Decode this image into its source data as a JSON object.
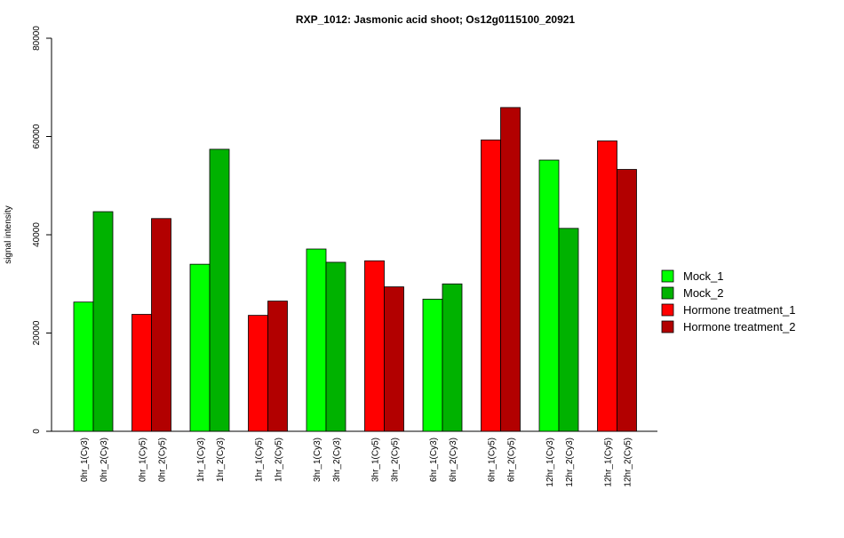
{
  "chart_data": {
    "type": "bar",
    "title": "RXP_1012: Jasmonic acid shoot; Os12g0115100_20921",
    "xlabel": "",
    "ylabel": "signal intensity",
    "ylim": [
      0,
      80000
    ],
    "yticks": [
      "0",
      "20000",
      "40000",
      "60000",
      "80000"
    ],
    "grid": false,
    "legend_position": "right",
    "legend": [
      {
        "name": "Mock_1",
        "color": "#00FF00"
      },
      {
        "name": "Mock_2",
        "color": "#00B200"
      },
      {
        "name": "Hormone treatment_1",
        "color": "#FF0000"
      },
      {
        "name": "Hormone treatment_2",
        "color": "#B20000"
      }
    ],
    "groups": [
      {
        "bars": [
          {
            "label": "0hr_1(Cy3)",
            "value": 26300,
            "color": "#00FF00"
          },
          {
            "label": "0hr_2(Cy3)",
            "value": 44700,
            "color": "#00B200"
          }
        ]
      },
      {
        "bars": [
          {
            "label": "0hr_1(Cy5)",
            "value": 23800,
            "color": "#FF0000"
          },
          {
            "label": "0hr_2(Cy5)",
            "value": 43300,
            "color": "#B20000"
          }
        ]
      },
      {
        "bars": [
          {
            "label": "1hr_1(Cy3)",
            "value": 34000,
            "color": "#00FF00"
          },
          {
            "label": "1hr_2(Cy3)",
            "value": 57400,
            "color": "#00B200"
          }
        ]
      },
      {
        "bars": [
          {
            "label": "1hr_1(Cy5)",
            "value": 23600,
            "color": "#FF0000"
          },
          {
            "label": "1hr_2(Cy5)",
            "value": 26500,
            "color": "#B20000"
          }
        ]
      },
      {
        "bars": [
          {
            "label": "3hr_1(Cy3)",
            "value": 37100,
            "color": "#00FF00"
          },
          {
            "label": "3hr_2(Cy3)",
            "value": 34400,
            "color": "#00B200"
          }
        ]
      },
      {
        "bars": [
          {
            "label": "3hr_1(Cy5)",
            "value": 34700,
            "color": "#FF0000"
          },
          {
            "label": "3hr_2(Cy5)",
            "value": 29400,
            "color": "#B20000"
          }
        ]
      },
      {
        "bars": [
          {
            "label": "6hr_1(Cy3)",
            "value": 26900,
            "color": "#00FF00"
          },
          {
            "label": "6hr_2(Cy3)",
            "value": 30000,
            "color": "#00B200"
          }
        ]
      },
      {
        "bars": [
          {
            "label": "6hr_1(Cy5)",
            "value": 59300,
            "color": "#FF0000"
          },
          {
            "label": "6hr_2(Cy5)",
            "value": 65900,
            "color": "#B20000"
          }
        ]
      },
      {
        "bars": [
          {
            "label": "12hr_1(Cy3)",
            "value": 55200,
            "color": "#00FF00"
          },
          {
            "label": "12hr_2(Cy3)",
            "value": 41300,
            "color": "#00B200"
          }
        ]
      },
      {
        "bars": [
          {
            "label": "12hr_1(Cy5)",
            "value": 59100,
            "color": "#FF0000"
          },
          {
            "label": "12hr_2(Cy5)",
            "value": 53300,
            "color": "#B20000"
          }
        ]
      }
    ]
  }
}
